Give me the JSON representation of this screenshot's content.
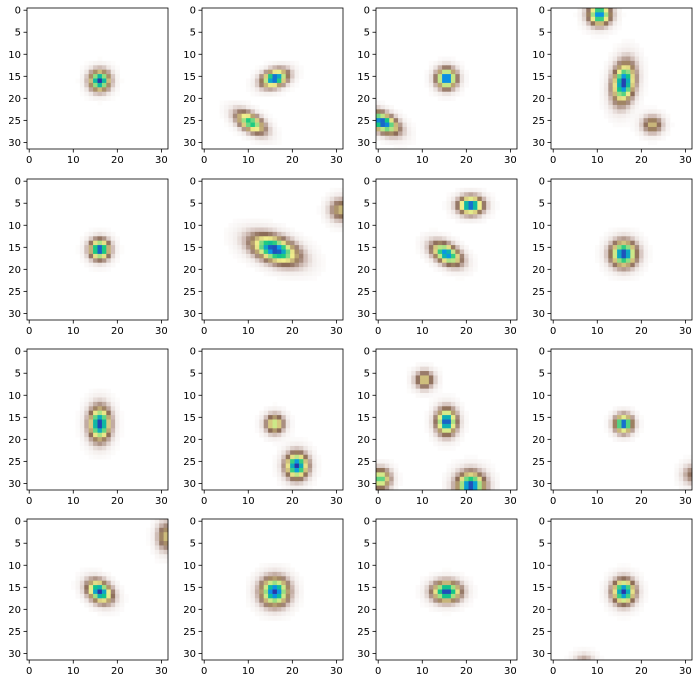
{
  "figure": {
    "rows": 4,
    "cols": 4,
    "colormap": "terrain_r",
    "image_size": [
      32,
      32
    ],
    "background": "#ffffff"
  },
  "chart_data": [
    {
      "type": "heatmap",
      "panel": [
        0,
        0
      ],
      "xlim": [
        0,
        31
      ],
      "ylim": [
        31,
        0
      ],
      "xticks": [
        "0",
        "10",
        "20",
        "30"
      ],
      "yticks": [
        "0",
        "5",
        "10",
        "15",
        "20",
        "25",
        "30"
      ],
      "blobs": [
        {
          "cx": 16,
          "cy": 16,
          "sx": 1.8,
          "sy": 1.8,
          "rho": 0.0,
          "amp": 1.0
        }
      ]
    },
    {
      "type": "heatmap",
      "panel": [
        0,
        1
      ],
      "xlim": [
        0,
        31
      ],
      "ylim": [
        31,
        0
      ],
      "xticks": [
        "0",
        "10",
        "20",
        "30"
      ],
      "yticks": [
        "0",
        "5",
        "10",
        "15",
        "20",
        "25",
        "30"
      ],
      "blobs": [
        {
          "cx": 16,
          "cy": 15.5,
          "sx": 2.3,
          "sy": 1.6,
          "rho": -0.3,
          "amp": 1.0
        },
        {
          "cx": 10.5,
          "cy": 25.5,
          "sx": 2.6,
          "sy": 2.0,
          "rho": 0.55,
          "amp": 0.85
        }
      ]
    },
    {
      "type": "heatmap",
      "panel": [
        0,
        2
      ],
      "xlim": [
        0,
        31
      ],
      "ylim": [
        31,
        0
      ],
      "xticks": [
        "0",
        "10",
        "20",
        "30"
      ],
      "yticks": [
        "0",
        "5",
        "10",
        "15",
        "20",
        "25",
        "30"
      ],
      "blobs": [
        {
          "cx": 15.5,
          "cy": 15.5,
          "sx": 1.8,
          "sy": 1.8,
          "rho": 0.0,
          "amp": 1.0
        },
        {
          "cx": 1,
          "cy": 25.5,
          "sx": 2.8,
          "sy": 2.0,
          "rho": 0.5,
          "amp": 1.0
        }
      ]
    },
    {
      "type": "heatmap",
      "panel": [
        0,
        3
      ],
      "xlim": [
        0,
        31
      ],
      "ylim": [
        31,
        0
      ],
      "xticks": [
        "0",
        "10",
        "20",
        "30"
      ],
      "yticks": [
        "0",
        "5",
        "10",
        "15",
        "20",
        "25",
        "30"
      ],
      "blobs": [
        {
          "cx": 10.5,
          "cy": 1,
          "sx": 2.0,
          "sy": 1.9,
          "rho": 0.0,
          "amp": 0.95
        },
        {
          "cx": 16,
          "cy": 16.5,
          "sx": 2.0,
          "sy": 3.6,
          "rho": -0.2,
          "amp": 1.0
        },
        {
          "cx": 22.5,
          "cy": 26,
          "sx": 1.8,
          "sy": 1.6,
          "rho": 0.0,
          "amp": 0.55
        }
      ]
    },
    {
      "type": "heatmap",
      "panel": [
        1,
        0
      ],
      "xlim": [
        0,
        31
      ],
      "ylim": [
        31,
        0
      ],
      "xticks": [
        "0",
        "10",
        "20",
        "30"
      ],
      "yticks": [
        "0",
        "5",
        "10",
        "15",
        "20",
        "25",
        "30"
      ],
      "blobs": [
        {
          "cx": 16,
          "cy": 15.5,
          "sx": 1.8,
          "sy": 1.8,
          "rho": 0.0,
          "amp": 1.0
        }
      ]
    },
    {
      "type": "heatmap",
      "panel": [
        1,
        1
      ],
      "xlim": [
        0,
        31
      ],
      "ylim": [
        31,
        0
      ],
      "xticks": [
        "0",
        "10",
        "20",
        "30"
      ],
      "yticks": [
        "0",
        "5",
        "10",
        "15",
        "20",
        "25",
        "30"
      ],
      "blobs": [
        {
          "cx": 16,
          "cy": 15.5,
          "sx": 4.2,
          "sy": 2.6,
          "rho": 0.45,
          "amp": 1.0
        },
        {
          "cx": 31,
          "cy": 6.5,
          "sx": 2.0,
          "sy": 2.0,
          "rho": 0.0,
          "amp": 0.55
        }
      ]
    },
    {
      "type": "heatmap",
      "panel": [
        1,
        2
      ],
      "xlim": [
        0,
        31
      ],
      "ylim": [
        31,
        0
      ],
      "xticks": [
        "0",
        "10",
        "20",
        "30"
      ],
      "yticks": [
        "0",
        "5",
        "10",
        "15",
        "20",
        "25",
        "30"
      ],
      "blobs": [
        {
          "cx": 21,
          "cy": 5.5,
          "sx": 2.2,
          "sy": 1.6,
          "rho": 0.0,
          "amp": 1.0
        },
        {
          "cx": 15.5,
          "cy": 16.5,
          "sx": 2.6,
          "sy": 2.0,
          "rho": 0.45,
          "amp": 0.95
        }
      ]
    },
    {
      "type": "heatmap",
      "panel": [
        1,
        3
      ],
      "xlim": [
        0,
        31
      ],
      "ylim": [
        31,
        0
      ],
      "xticks": [
        "0",
        "10",
        "20",
        "30"
      ],
      "yticks": [
        "0",
        "5",
        "10",
        "15",
        "20",
        "25",
        "30"
      ],
      "blobs": [
        {
          "cx": 16,
          "cy": 16.5,
          "sx": 2.3,
          "sy": 2.3,
          "rho": 0.0,
          "amp": 1.0
        }
      ]
    },
    {
      "type": "heatmap",
      "panel": [
        2,
        0
      ],
      "xlim": [
        0,
        31
      ],
      "ylim": [
        31,
        0
      ],
      "xticks": [
        "0",
        "10",
        "20",
        "30"
      ],
      "yticks": [
        "0",
        "5",
        "10",
        "15",
        "20",
        "25",
        "30"
      ],
      "blobs": [
        {
          "cx": 16,
          "cy": 16.5,
          "sx": 1.9,
          "sy": 3.0,
          "rho": 0.0,
          "amp": 1.0
        }
      ]
    },
    {
      "type": "heatmap",
      "panel": [
        2,
        1
      ],
      "xlim": [
        0,
        31
      ],
      "ylim": [
        31,
        0
      ],
      "xticks": [
        "0",
        "10",
        "20",
        "30"
      ],
      "yticks": [
        "0",
        "5",
        "10",
        "15",
        "20",
        "25",
        "30"
      ],
      "blobs": [
        {
          "cx": 16,
          "cy": 16.5,
          "sx": 1.7,
          "sy": 1.7,
          "rho": 0.0,
          "amp": 0.7
        },
        {
          "cx": 21,
          "cy": 26,
          "sx": 2.0,
          "sy": 2.3,
          "rho": 0.0,
          "amp": 1.0
        }
      ]
    },
    {
      "type": "heatmap",
      "panel": [
        2,
        2
      ],
      "xlim": [
        0,
        31
      ],
      "ylim": [
        31,
        0
      ],
      "xticks": [
        "0",
        "10",
        "20",
        "30"
      ],
      "yticks": [
        "0",
        "5",
        "10",
        "15",
        "20",
        "25",
        "30"
      ],
      "blobs": [
        {
          "cx": 10.5,
          "cy": 6.5,
          "sx": 1.7,
          "sy": 1.6,
          "rho": 0.0,
          "amp": 0.6
        },
        {
          "cx": 15.5,
          "cy": 16,
          "sx": 1.8,
          "sy": 2.3,
          "rho": 0.0,
          "amp": 1.0
        },
        {
          "cx": 0.5,
          "cy": 29,
          "sx": 1.8,
          "sy": 1.8,
          "rho": 0.0,
          "amp": 0.8
        },
        {
          "cx": 21,
          "cy": 30.5,
          "sx": 2.5,
          "sy": 2.4,
          "rho": 0.0,
          "amp": 1.0
        }
      ]
    },
    {
      "type": "heatmap",
      "panel": [
        2,
        3
      ],
      "xlim": [
        0,
        31
      ],
      "ylim": [
        31,
        0
      ],
      "xticks": [
        "0",
        "10",
        "20",
        "30"
      ],
      "yticks": [
        "0",
        "5",
        "10",
        "15",
        "20",
        "25",
        "30"
      ],
      "blobs": [
        {
          "cx": 16,
          "cy": 16.5,
          "sx": 1.6,
          "sy": 1.6,
          "rho": 0.0,
          "amp": 1.0
        },
        {
          "cx": 31.5,
          "cy": 28,
          "sx": 1.8,
          "sy": 1.8,
          "rho": 0.0,
          "amp": 0.4
        }
      ]
    },
    {
      "type": "heatmap",
      "panel": [
        3,
        0
      ],
      "xlim": [
        0,
        31
      ],
      "ylim": [
        31,
        0
      ],
      "xticks": [
        "0",
        "10",
        "20",
        "30"
      ],
      "yticks": [
        "0",
        "5",
        "10",
        "15",
        "20",
        "25",
        "30"
      ],
      "blobs": [
        {
          "cx": 16,
          "cy": 16,
          "sx": 2.2,
          "sy": 2.0,
          "rho": 0.3,
          "amp": 1.0
        },
        {
          "cx": 31,
          "cy": 3.5,
          "sx": 1.6,
          "sy": 2.5,
          "rho": 0.0,
          "amp": 0.55
        }
      ]
    },
    {
      "type": "heatmap",
      "panel": [
        3,
        1
      ],
      "xlim": [
        0,
        31
      ],
      "ylim": [
        31,
        0
      ],
      "xticks": [
        "0",
        "10",
        "20",
        "30"
      ],
      "yticks": [
        "0",
        "5",
        "10",
        "15",
        "20",
        "25",
        "30"
      ],
      "blobs": [
        {
          "cx": 16,
          "cy": 16,
          "sx": 2.5,
          "sy": 2.5,
          "rho": 0.0,
          "amp": 1.0
        }
      ]
    },
    {
      "type": "heatmap",
      "panel": [
        3,
        2
      ],
      "xlim": [
        0,
        31
      ],
      "ylim": [
        31,
        0
      ],
      "xticks": [
        "0",
        "10",
        "20",
        "30"
      ],
      "yticks": [
        "0",
        "5",
        "10",
        "15",
        "20",
        "25",
        "30"
      ],
      "blobs": [
        {
          "cx": 15.5,
          "cy": 16,
          "sx": 2.5,
          "sy": 1.8,
          "rho": 0.0,
          "amp": 1.0
        }
      ]
    },
    {
      "type": "heatmap",
      "panel": [
        3,
        3
      ],
      "xlim": [
        0,
        31
      ],
      "ylim": [
        31,
        0
      ],
      "xticks": [
        "0",
        "10",
        "20",
        "30"
      ],
      "yticks": [
        "0",
        "5",
        "10",
        "15",
        "20",
        "25",
        "30"
      ],
      "blobs": [
        {
          "cx": 16,
          "cy": 16,
          "sx": 2.0,
          "sy": 2.2,
          "rho": 0.0,
          "amp": 1.0
        },
        {
          "cx": 7,
          "cy": 32,
          "sx": 1.8,
          "sy": 1.5,
          "rho": 0.0,
          "amp": 0.35
        }
      ]
    }
  ]
}
